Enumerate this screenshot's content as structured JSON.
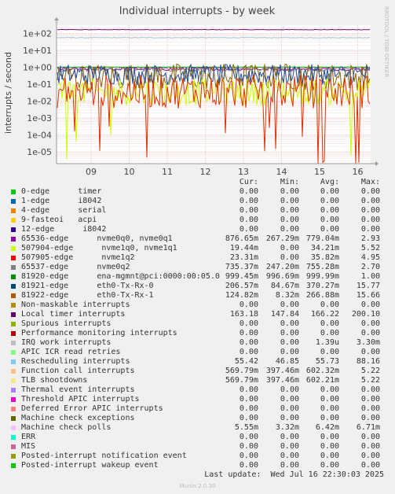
{
  "chart_data": {
    "type": "line",
    "title": "Individual interrupts - by week",
    "ylabel": "interrupts / second",
    "side_label": "RRDTOOL / TOBI OETIKER",
    "yscale": "log",
    "ylim": [
      2e-06,
      300
    ],
    "y_ticks": [
      "1e-05",
      "1e-04",
      "1e-03",
      "1e-02",
      "1e-01",
      "1e+00",
      "1e+01",
      "1e+02"
    ],
    "x_ticks": [
      "09",
      "10",
      "11",
      "12",
      "13",
      "14",
      "15",
      "16"
    ],
    "grid": true,
    "series": [
      {
        "name": "Local timer interrupts",
        "color": "#7f007f",
        "level": 163,
        "noise": 0.03,
        "dips": 0
      },
      {
        "name": "Rescheduling interrupts",
        "color": "#a6cfe8",
        "level": 55,
        "noise": 0.05,
        "dips": 0
      },
      {
        "name": "81920-edge ena-mgmnt@pci:0000:00:05.0",
        "color": "#009900",
        "level": 1.0,
        "noise": 0.01,
        "dips": 0
      },
      {
        "name": "65536-edge nvme0q0, nvme0q1",
        "color": "#990099",
        "level": 0.78,
        "noise": 0.2,
        "dips": 0
      },
      {
        "name": "65537-edge nvme0q2",
        "color": "#7f7f7f",
        "level": 0.75,
        "noise": 0.25,
        "dips": 0
      },
      {
        "name": "81922-edge eth0-Tx-Rx-1",
        "color": "#8a6000",
        "level": 0.27,
        "noise": 1.6,
        "dips": 0
      },
      {
        "name": "81921-edge eth0-Tx-Rx-0",
        "color": "#1f4d99",
        "level": 0.37,
        "noise": 1.2,
        "dips": 0
      },
      {
        "name": "507904-edge nvme1q0, nvme1q1",
        "color": "#ccff00",
        "level": 0.034,
        "noise": 1.6,
        "dips": 0.03
      },
      {
        "name": "507905-edge nvme1q2",
        "color": "#e03000",
        "level": 0.036,
        "noise": 2.0,
        "dips": 0.08
      }
    ],
    "legend_headers": [
      "Cur:",
      "Min:",
      "Avg:",
      "Max:"
    ],
    "legend": [
      {
        "name": "0-edge      timer",
        "color": "#00cc00",
        "cur": "0.00",
        "min": "0.00",
        "avg": "0.00",
        "max": "0.00"
      },
      {
        "name": "1-edge      i8042",
        "color": "#0066b3",
        "cur": "0.00",
        "min": "0.00",
        "avg": "0.00",
        "max": "0.00"
      },
      {
        "name": "4-edge      serial",
        "color": "#ff8000",
        "cur": "0.00",
        "min": "0.00",
        "avg": "0.00",
        "max": "0.00"
      },
      {
        "name": "9-fasteoi   acpi",
        "color": "#ffcc00",
        "cur": "0.00",
        "min": "0.00",
        "avg": "0.00",
        "max": "0.00"
      },
      {
        "name": "12-edge      i8042",
        "color": "#330099",
        "cur": "0.00",
        "min": "0.00",
        "avg": "0.00",
        "max": "0.00"
      },
      {
        "name": "65536-edge      nvme0q0, nvme0q1",
        "color": "#990099",
        "cur": "876.65m",
        "min": "267.29m",
        "avg": "779.04m",
        "max": "2.93"
      },
      {
        "name": "507904-edge      nvme1q0, nvme1q1",
        "color": "#ccff00",
        "cur": "19.44m",
        "min": "0.00",
        "avg": "34.21m",
        "max": "5.52"
      },
      {
        "name": "507905-edge      nvme1q2",
        "color": "#ff0000",
        "cur": "23.31m",
        "min": "0.00",
        "avg": "35.82m",
        "max": "4.95"
      },
      {
        "name": "65537-edge      nvme0q2",
        "color": "#808080",
        "cur": "735.37m",
        "min": "247.20m",
        "avg": "755.28m",
        "max": "2.70"
      },
      {
        "name": "81920-edge      ena-mgmnt@pci:0000:00:05.0",
        "color": "#008f00",
        "cur": "999.45m",
        "min": "996.69m",
        "avg": "999.99m",
        "max": "1.00"
      },
      {
        "name": "81921-edge      eth0-Tx-Rx-0",
        "color": "#00487d",
        "cur": "206.57m",
        "min": "84.67m",
        "avg": "370.27m",
        "max": "15.77"
      },
      {
        "name": "81922-edge      eth0-Tx-Rx-1",
        "color": "#b35a00",
        "cur": "124.82m",
        "min": "8.32m",
        "avg": "266.88m",
        "max": "15.66"
      },
      {
        "name": "Non-maskable interrupts",
        "color": "#b38f00",
        "cur": "0.00",
        "min": "0.00",
        "avg": "0.00",
        "max": "0.00"
      },
      {
        "name": "Local timer interrupts",
        "color": "#6b006b",
        "cur": "163.18",
        "min": "147.84",
        "avg": "166.22",
        "max": "200.10"
      },
      {
        "name": "Spurious interrupts",
        "color": "#8fb300",
        "cur": "0.00",
        "min": "0.00",
        "avg": "0.00",
        "max": "0.00"
      },
      {
        "name": "Performance monitoring interrupts",
        "color": "#b30000",
        "cur": "0.00",
        "min": "0.00",
        "avg": "0.00",
        "max": "0.00"
      },
      {
        "name": "IRQ work interrupts",
        "color": "#bebebe",
        "cur": "0.00",
        "min": "0.00",
        "avg": "1.39u",
        "max": "3.30m"
      },
      {
        "name": "APIC ICR read retries",
        "color": "#80ff80",
        "cur": "0.00",
        "min": "0.00",
        "avg": "0.00",
        "max": "0.00"
      },
      {
        "name": "Rescheduling interrupts",
        "color": "#80c9ff",
        "cur": "55.42",
        "min": "46.85",
        "avg": "55.73",
        "max": "88.16"
      },
      {
        "name": "Function call interrupts",
        "color": "#ffc080",
        "cur": "569.79m",
        "min": "397.46m",
        "avg": "602.32m",
        "max": "5.22"
      },
      {
        "name": "TLB shootdowns",
        "color": "#ffe680",
        "cur": "569.79m",
        "min": "397.46m",
        "avg": "602.21m",
        "max": "5.22"
      },
      {
        "name": "Thermal event interrupts",
        "color": "#aa80ff",
        "cur": "0.00",
        "min": "0.00",
        "avg": "0.00",
        "max": "0.00"
      },
      {
        "name": "Threshold APIC interrupts",
        "color": "#ee00cc",
        "cur": "0.00",
        "min": "0.00",
        "avg": "0.00",
        "max": "0.00"
      },
      {
        "name": "Deferred Error APIC interrupts",
        "color": "#ff8080",
        "cur": "0.00",
        "min": "0.00",
        "avg": "0.00",
        "max": "0.00"
      },
      {
        "name": "Machine check exceptions",
        "color": "#666600",
        "cur": "0.00",
        "min": "0.00",
        "avg": "0.00",
        "max": "0.00"
      },
      {
        "name": "Machine check polls",
        "color": "#ffbfff",
        "cur": "5.55m",
        "min": "3.32m",
        "avg": "6.42m",
        "max": "6.71m"
      },
      {
        "name": "ERR",
        "color": "#00ffcc",
        "cur": "0.00",
        "min": "0.00",
        "avg": "0.00",
        "max": "0.00"
      },
      {
        "name": "MIS",
        "color": "#cc6699",
        "cur": "0.00",
        "min": "0.00",
        "avg": "0.00",
        "max": "0.00"
      },
      {
        "name": "Posted-interrupt notification event",
        "color": "#999900",
        "cur": "0.00",
        "min": "0.00",
        "avg": "0.00",
        "max": "0.00"
      },
      {
        "name": "Posted-interrupt wakeup event",
        "color": "#00cc00",
        "cur": "0.00",
        "min": "0.00",
        "avg": "0.00",
        "max": "0.00"
      }
    ],
    "last_update": "Last update:  Wed Jul 16 22:30:03 2025",
    "generator": "Munin 2.0.30"
  }
}
